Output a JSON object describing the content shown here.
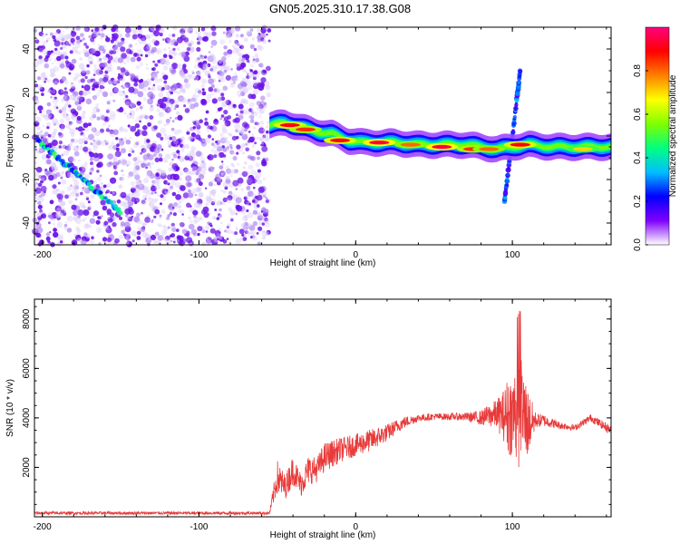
{
  "title": "GN05.2025.310.17.38.G08",
  "chart_data": [
    {
      "type": "heatmap",
      "xlabel": "Height of straight line (km)",
      "ylabel": "Frequency (Hz)",
      "xlim": [
        -205,
        163
      ],
      "ylim": [
        -50,
        50
      ],
      "xticks": [
        -200,
        -100,
        0,
        100
      ],
      "yticks": [
        -40,
        -20,
        0,
        20,
        40
      ],
      "colorbar": {
        "label": "Normalized spectral amplitude",
        "range": [
          0,
          1
        ],
        "ticks": [
          "0.0",
          "0.2",
          "0.4",
          "0.6",
          "0.8"
        ],
        "colormap": [
          "#ffffff",
          "#7f00ff",
          "#0000ff",
          "#00bfff",
          "#00ff80",
          "#80ff00",
          "#ffff00",
          "#ff8000",
          "#ff0000",
          "#ff0080"
        ]
      },
      "noise_region": {
        "x_range": [
          -205,
          -55
        ],
        "y_range": [
          -50,
          50
        ]
      },
      "ridge": {
        "x": [
          -55,
          -45,
          -35,
          -25,
          -15,
          -5,
          5,
          15,
          25,
          40,
          55,
          70,
          80,
          90,
          100,
          110,
          125,
          140,
          163
        ],
        "y": [
          5,
          6,
          4,
          2,
          1,
          -2,
          -3,
          -3,
          -3,
          -4,
          -4,
          -4,
          -5,
          -6,
          -5,
          -4,
          -5,
          -5,
          -5
        ]
      },
      "hotspots": [
        {
          "x": -42,
          "y": 5,
          "amp": 0.9
        },
        {
          "x": -32,
          "y": 3,
          "amp": 0.85
        },
        {
          "x": -10,
          "y": -2,
          "amp": 0.9
        },
        {
          "x": 15,
          "y": -3,
          "amp": 0.95
        },
        {
          "x": 35,
          "y": -4,
          "amp": 0.8
        },
        {
          "x": 55,
          "y": -5,
          "amp": 0.95
        },
        {
          "x": 75,
          "y": -6,
          "amp": 0.85
        },
        {
          "x": 85,
          "y": -6,
          "amp": 0.8
        },
        {
          "x": 105,
          "y": -4,
          "amp": 0.9
        },
        {
          "x": 145,
          "y": -6,
          "amp": 0.7
        }
      ],
      "diagonal_features": [
        {
          "x": [
            -203,
            -150
          ],
          "y": [
            -2,
            -35
          ],
          "amp": 0.5
        },
        {
          "x": [
            95,
            105
          ],
          "y": [
            -30,
            30
          ],
          "amp": 0.35
        }
      ]
    },
    {
      "type": "line",
      "xlabel": "Height of straight line (km)",
      "ylabel": "SNR (10 * v/v)",
      "xlim": [
        -205,
        163
      ],
      "ylim": [
        0,
        8800
      ],
      "xticks": [
        -200,
        -100,
        0,
        100
      ],
      "yticks": [
        2000,
        4000,
        6000,
        8000
      ],
      "series": [
        {
          "color": "#e83a3a",
          "envelope": {
            "x": [
              -205,
              -57,
              -55,
              -50,
              -45,
              -40,
              -35,
              -30,
              -25,
              -20,
              -10,
              0,
              10,
              20,
              30,
              40,
              50,
              60,
              70,
              80,
              85,
              90,
              95,
              98,
              100,
              103,
              105,
              107,
              110,
              115,
              120,
              130,
              140,
              150,
              163
            ],
            "y": [
              150,
              150,
              150,
              1600,
              1200,
              1900,
              1300,
              1900,
              1900,
              2400,
              2700,
              2900,
              3100,
              3400,
              3800,
              4000,
              4050,
              4050,
              4050,
              4000,
              4100,
              4150,
              4100,
              4150,
              4100,
              4300,
              3900,
              4100,
              3800,
              3900,
              3900,
              3700,
              3600,
              4000,
              3500
            ],
            "amp": [
              60,
              60,
              60,
              700,
              500,
              600,
              500,
              600,
              500,
              600,
              500,
              450,
              450,
              350,
              250,
              150,
              140,
              140,
              160,
              300,
              450,
              600,
              1100,
              1800,
              1500,
              2500,
              3000,
              2000,
              1400,
              300,
              250,
              150,
              120,
              150,
              200
            ]
          }
        }
      ]
    }
  ]
}
